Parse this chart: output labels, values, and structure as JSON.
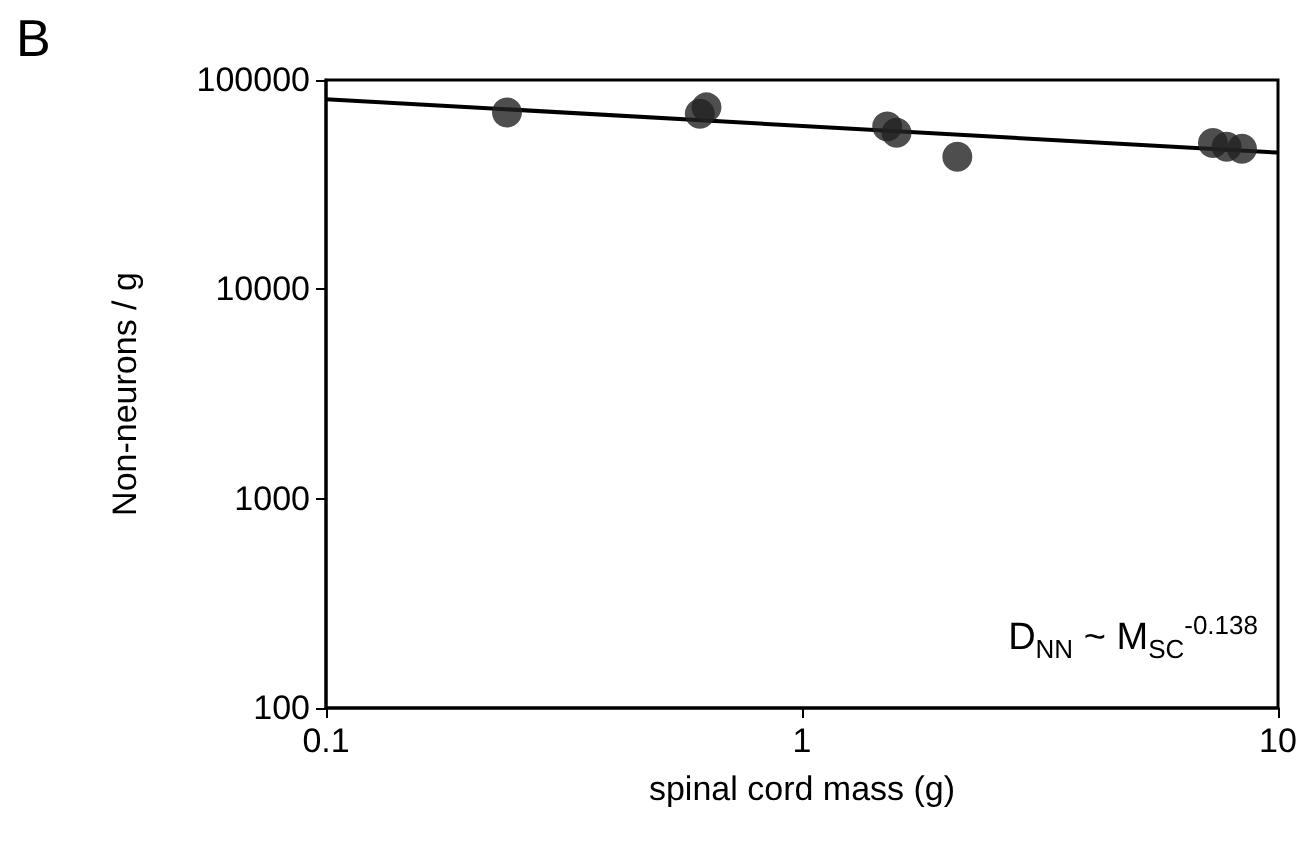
{
  "chart_data": {
    "type": "scatter",
    "title": "B",
    "xlabel": "spinal cord mass (g)",
    "ylabel": "Non-neurons / g",
    "annotations": [
      "D$_{NN}$ ~ M$_{SC}$$^{-0.138}$"
    ],
    "series": [
      {
        "color": "#222222",
        "x": [
          0.24,
          0.61,
          0.63,
          1.51,
          1.58,
          2.12,
          7.3,
          7.8,
          8.4
        ],
        "values": [
          70000,
          69000,
          74000,
          60000,
          56000,
          43000,
          50000,
          48000,
          47000
        ]
      },
      {
        "type": "line",
        "marker": "none",
        "color": "#000000",
        "x": [
          0.1,
          10
        ],
        "values": [
          81000,
          45000
        ]
      }
    ],
    "xlim": [
      0.1,
      10
    ],
    "xticks": [
      0.1,
      1,
      10
    ],
    "ylim": [
      100,
      100000
    ],
    "yticks": [
      100,
      1000,
      10000,
      100000
    ],
    "log": "xy",
    "grid": false,
    "marker": "circle",
    "line_style": "solid"
  }
}
